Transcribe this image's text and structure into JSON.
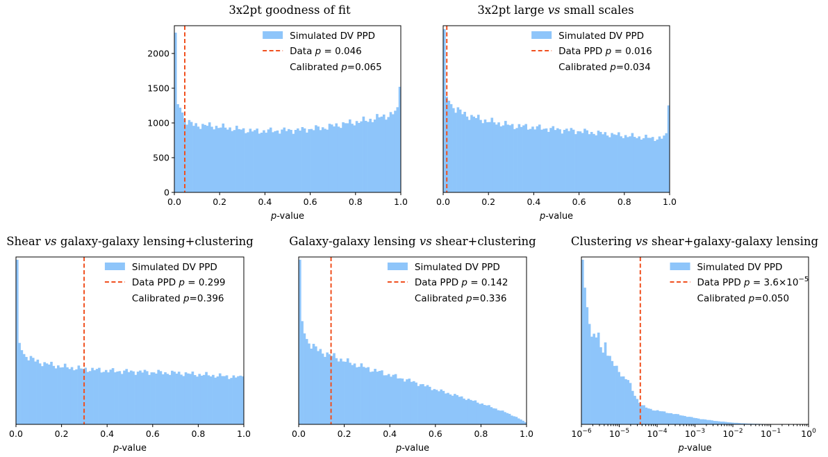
{
  "colors": {
    "bars": "#8ec5fa",
    "data_line": "#f04f1e",
    "axes": "#000000"
  },
  "chart_data": [
    {
      "type": "bar",
      "title_parts": [
        "3x2pt goodness of fit"
      ],
      "xlabel_var": "p",
      "xlabel_rest": "-value",
      "xlim": [
        0,
        1
      ],
      "ylim": [
        0,
        2400
      ],
      "show_y_ticks": true,
      "yticks": [
        0,
        500,
        1000,
        1500,
        2000
      ],
      "xticks": [
        "0.0",
        "0.2",
        "0.4",
        "0.6",
        "0.8",
        "1.0"
      ],
      "legend": {
        "placement": "top-right",
        "hist_label": "Simulated DV PPD",
        "line_label_parts": [
          "Data ",
          "p",
          " = 0.046"
        ],
        "calibrated_parts": [
          "Calibrated ",
          "p",
          "=0.065"
        ]
      },
      "data_line_x": 0.046,
      "bin_count": 100,
      "anchors": [
        [
          0,
          2300
        ],
        [
          1,
          1270
        ],
        [
          2,
          1220
        ],
        [
          3,
          1150
        ],
        [
          4,
          1080
        ],
        [
          5,
          1020
        ],
        [
          8,
          970
        ],
        [
          15,
          960
        ],
        [
          25,
          920
        ],
        [
          35,
          880
        ],
        [
          45,
          890
        ],
        [
          55,
          900
        ],
        [
          65,
          930
        ],
        [
          75,
          990
        ],
        [
          85,
          1040
        ],
        [
          95,
          1120
        ],
        [
          97,
          1150
        ],
        [
          98,
          1180
        ],
        [
          99,
          1590
        ]
      ]
    },
    {
      "type": "bar",
      "title_parts": [
        "3x2pt large ",
        "vs",
        " small scales"
      ],
      "xlabel_var": "p",
      "xlabel_rest": "-value",
      "xlim": [
        0,
        1
      ],
      "ylim": [
        0,
        2400
      ],
      "show_y_ticks": false,
      "xticks": [
        "0.0",
        "0.2",
        "0.4",
        "0.6",
        "0.8",
        "1.0"
      ],
      "legend": {
        "placement": "top-right",
        "hist_label": "Simulated DV PPD",
        "line_label_parts": [
          "Data PPD ",
          "p",
          " = 0.016"
        ],
        "calibrated_parts": [
          "Calibrated ",
          "p",
          "=0.034"
        ]
      },
      "data_line_x": 0.016,
      "bin_count": 100,
      "anchors": [
        [
          0,
          2350
        ],
        [
          1,
          1380
        ],
        [
          2,
          1320
        ],
        [
          3,
          1270
        ],
        [
          5,
          1200
        ],
        [
          8,
          1140
        ],
        [
          12,
          1090
        ],
        [
          20,
          1020
        ],
        [
          30,
          960
        ],
        [
          45,
          920
        ],
        [
          60,
          880
        ],
        [
          75,
          830
        ],
        [
          85,
          800
        ],
        [
          92,
          780
        ],
        [
          96,
          780
        ],
        [
          98,
          820
        ],
        [
          99,
          1310
        ]
      ]
    },
    {
      "type": "bar",
      "title_parts": [
        "Shear ",
        "vs",
        " galaxy-galaxy lensing+clustering"
      ],
      "xlabel_var": "p",
      "xlabel_rest": "-value",
      "xlim": [
        0,
        1
      ],
      "ylim": [
        0,
        3000
      ],
      "show_y_ticks": false,
      "xticks": [
        "0.0",
        "0.2",
        "0.4",
        "0.6",
        "0.8",
        "1.0"
      ],
      "legend": {
        "placement": "top-right",
        "hist_label": "Simulated DV PPD",
        "line_label_parts": [
          "Data PPD ",
          "p",
          " = 0.299"
        ],
        "calibrated_parts": [
          "Calibrated ",
          "p",
          "=0.396"
        ]
      },
      "data_line_x": 0.299,
      "bin_count": 100,
      "anchors": [
        [
          0,
          2950
        ],
        [
          1,
          1460
        ],
        [
          2,
          1330
        ],
        [
          3,
          1260
        ],
        [
          5,
          1200
        ],
        [
          8,
          1140
        ],
        [
          12,
          1090
        ],
        [
          20,
          1030
        ],
        [
          30,
          990
        ],
        [
          40,
          960
        ],
        [
          55,
          940
        ],
        [
          70,
          920
        ],
        [
          85,
          880
        ],
        [
          95,
          850
        ],
        [
          98,
          840
        ],
        [
          99,
          900
        ]
      ]
    },
    {
      "type": "bar",
      "title_parts": [
        "Galaxy-galaxy lensing ",
        "vs",
        " shear+clustering"
      ],
      "xlabel_var": "p",
      "xlabel_rest": "-value",
      "xlim": [
        0,
        1
      ],
      "ylim": [
        0,
        3000
      ],
      "show_y_ticks": false,
      "xticks": [
        "0.0",
        "0.2",
        "0.4",
        "0.6",
        "0.8",
        "1.0"
      ],
      "legend": {
        "placement": "top-right",
        "hist_label": "Simulated DV PPD",
        "line_label_parts": [
          "Data PPD ",
          "p",
          " = 0.142"
        ],
        "calibrated_parts": [
          "Calibrated ",
          "p",
          "=0.336"
        ]
      },
      "data_line_x": 0.142,
      "bin_count": 100,
      "anchors": [
        [
          0,
          2950
        ],
        [
          1,
          1850
        ],
        [
          2,
          1630
        ],
        [
          3,
          1530
        ],
        [
          5,
          1420
        ],
        [
          8,
          1330
        ],
        [
          12,
          1260
        ],
        [
          16,
          1200
        ],
        [
          20,
          1130
        ],
        [
          30,
          1000
        ],
        [
          40,
          880
        ],
        [
          50,
          760
        ],
        [
          60,
          620
        ],
        [
          70,
          500
        ],
        [
          80,
          370
        ],
        [
          90,
          220
        ],
        [
          95,
          130
        ],
        [
          99,
          40
        ]
      ]
    },
    {
      "type": "bar",
      "title_parts": [
        "Clustering ",
        "vs",
        " shear+galaxy-galaxy lensing"
      ],
      "xlabel_var": "p",
      "xlabel_rest": "-value",
      "x_scale": "log",
      "xlim_log10": [
        -6,
        0
      ],
      "ylim": [
        0,
        3000
      ],
      "show_y_ticks": false,
      "xtick_exponents": [
        "−6",
        "−5",
        "−4",
        "−3",
        "−2",
        "−1",
        "0"
      ],
      "legend": {
        "placement": "top-right",
        "hist_label": "Simulated DV PPD",
        "line_label_parts": [
          "Data PPD ",
          "p",
          " = 3.6×10",
          "−5"
        ],
        "calibrated_parts": [
          "Calibrated ",
          "p",
          "=0.050"
        ]
      },
      "data_line_log10": -4.444,
      "bin_count": 100,
      "anchors": [
        [
          0,
          2950
        ],
        [
          1,
          2450
        ],
        [
          2,
          2100
        ],
        [
          3,
          1800
        ],
        [
          4,
          1600
        ],
        [
          5,
          1700
        ],
        [
          6,
          1500
        ],
        [
          7,
          1600
        ],
        [
          8,
          1400
        ],
        [
          9,
          1250
        ],
        [
          10,
          1500
        ],
        [
          11,
          1300
        ],
        [
          12,
          1200
        ],
        [
          14,
          1050
        ],
        [
          16,
          950
        ],
        [
          18,
          850
        ],
        [
          20,
          800
        ],
        [
          22,
          600
        ],
        [
          24,
          450
        ],
        [
          26,
          350
        ],
        [
          28,
          300
        ],
        [
          30,
          270
        ],
        [
          35,
          230
        ],
        [
          40,
          190
        ],
        [
          45,
          150
        ],
        [
          50,
          110
        ],
        [
          55,
          80
        ],
        [
          60,
          55
        ],
        [
          65,
          35
        ],
        [
          70,
          20
        ],
        [
          75,
          12
        ],
        [
          80,
          7
        ],
        [
          90,
          3
        ],
        [
          99,
          2
        ]
      ]
    }
  ]
}
